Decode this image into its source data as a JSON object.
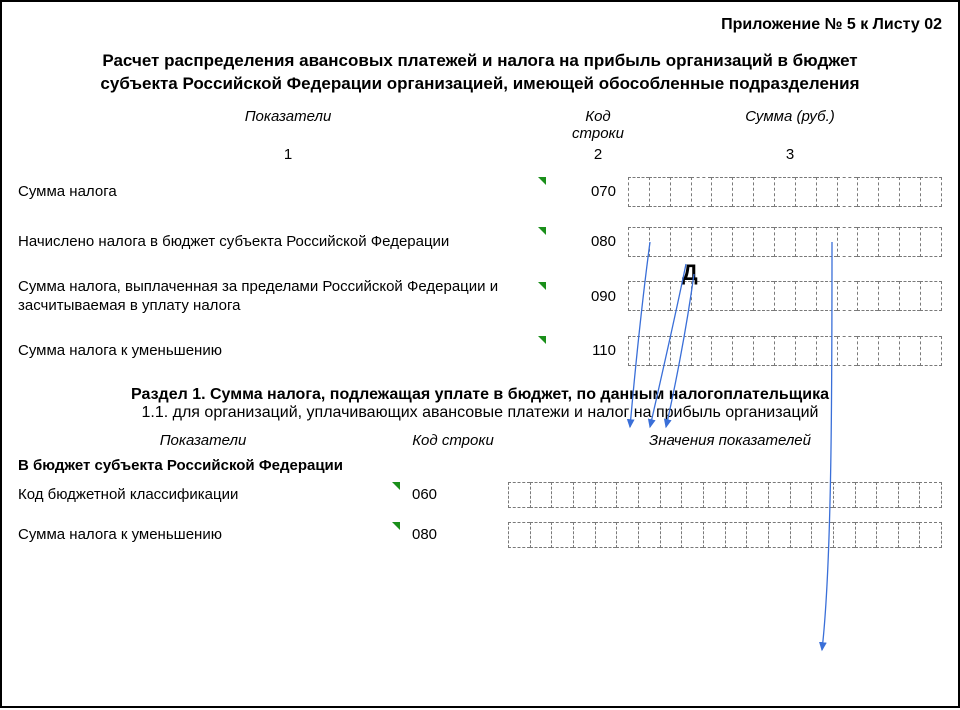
{
  "appendixLabel": "Приложение № 5 к Листу 02",
  "mainTitle1": "Расчет распределения авансовых платежей и налога на прибыль организаций в бюджет",
  "mainTitle2": "субъекта Российской Федерации организацией, имеющей обособленные подразделения",
  "colHead": {
    "c1": "Показатели",
    "c2": "Код строки",
    "c3": "Сумма (руб.)"
  },
  "colNum": {
    "c1": "1",
    "c2": "2",
    "c3": "3"
  },
  "rows": [
    {
      "label": "Сумма налога",
      "code": "070"
    },
    {
      "label": "Начислено налога в бюджет субъекта Российской Федерации",
      "code": "080"
    },
    {
      "label": "Сумма налога, выплаченная за пределами Российской Федерации и засчитываемая в уплату налога",
      "code": "090"
    },
    {
      "label": "Сумма налога к уменьшению",
      "code": "110"
    }
  ],
  "sectionTitle": "Раздел 1. Сумма налога, подлежащая уплате в бюджет, по данным налогоплательщика",
  "sectionSub": "1.1. для организаций, уплачивающих авансовые платежи и налог на прибыль организаций",
  "colHead2": {
    "c1": "Показатели",
    "c2": "Код строки",
    "c3": "Значения показателей"
  },
  "budgetLine": "В бюджет субъекта Российской Федерации",
  "rows2": [
    {
      "label": "Код бюджетной классификации",
      "code": "060"
    },
    {
      "label": "Сумма налога к уменьшению",
      "code": "080"
    }
  ],
  "cellsTop": 15,
  "cellsBottom": 20,
  "cursorMark": "Д",
  "style": {
    "arrowColor": "#3a6fd8",
    "tickGreen": "#1a8f1a",
    "dashColor": "#7a7a7a",
    "pageBorder": "#000000",
    "background": "#ffffff"
  }
}
